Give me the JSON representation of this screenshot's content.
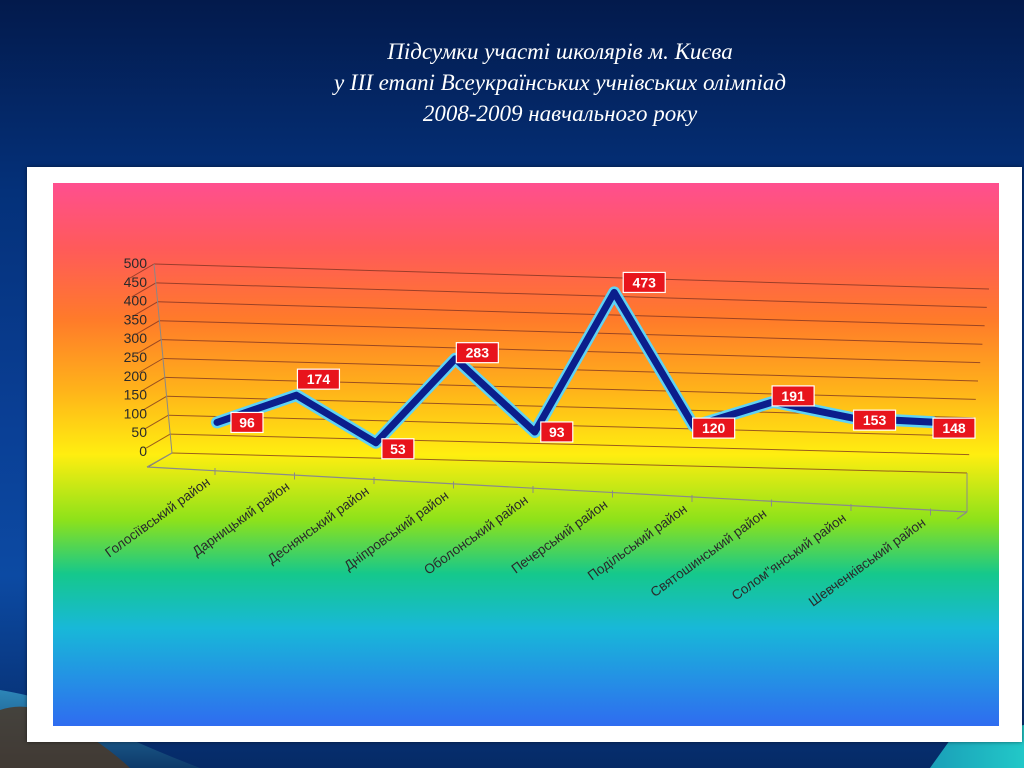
{
  "slide": {
    "title_lines": [
      "Підсумки участі школярів м. Києва",
      "у ІІІ  етапі Всеукраїнських учнівських олімпіад",
      "2008-2009 навчального року"
    ]
  },
  "chart_data": {
    "type": "line",
    "title": "",
    "xlabel": "",
    "ylabel": "",
    "ylim": [
      0,
      500
    ],
    "yticks": [
      0,
      50,
      100,
      150,
      200,
      250,
      300,
      350,
      400,
      450,
      500
    ],
    "grid": true,
    "legend": "none",
    "categories": [
      "Голосіївський район",
      "Дарницький район",
      "Деснянський район",
      "Дніпровський район",
      "Оболонський район",
      "Печерський район",
      "Подільський район",
      "Святошинський район",
      "Солом\"янський район",
      "Шевченківський район"
    ],
    "series": [
      {
        "values": [
          96,
          174,
          53,
          283,
          93,
          473,
          120,
          191,
          153,
          148
        ]
      }
    ],
    "colors": {
      "line_core": "#0b1e8c",
      "line_highlight": "#5fd3f5",
      "label_bg": "#e8141c",
      "label_text": "#ffffff",
      "grid": "#7a3020",
      "axis_text": "#2a2a2a"
    }
  }
}
